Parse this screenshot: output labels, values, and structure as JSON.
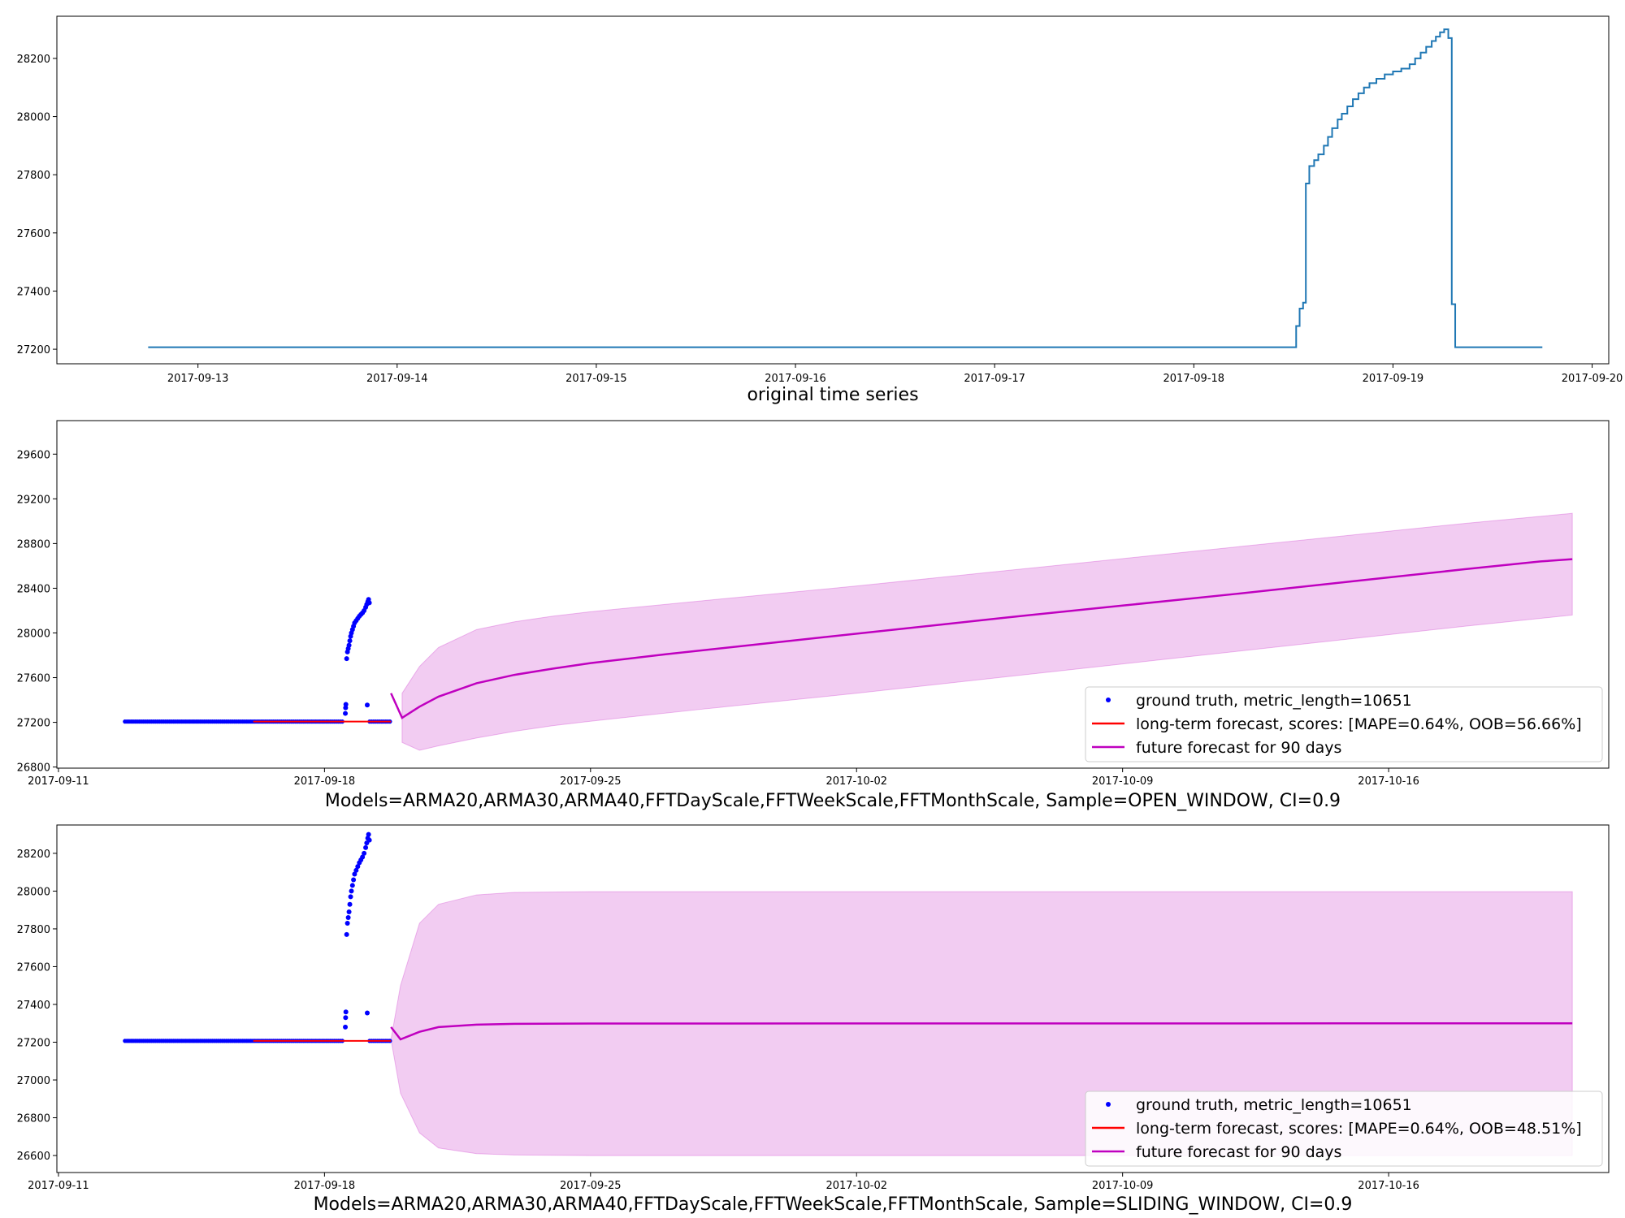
{
  "chart_data": [
    {
      "type": "line",
      "xlabel": "original time series",
      "x_ticks": [
        "2017-09-13",
        "2017-09-14",
        "2017-09-15",
        "2017-09-16",
        "2017-09-17",
        "2017-09-18",
        "2017-09-19",
        "2017-09-20"
      ],
      "y_ticks": [
        "27200",
        "27400",
        "27600",
        "27800",
        "28000",
        "28200"
      ],
      "xlim": [
        "2017-09-12T07:00",
        "2017-09-20T02:00"
      ],
      "ylim": [
        27150,
        28345
      ],
      "series": [
        {
          "color": "#1f77b4",
          "step": true,
          "points": [
            [
              "2017-09-12T18:00",
              27207
            ],
            [
              "2017-09-18T12:00",
              27207
            ],
            [
              "2017-09-18T12:20",
              27280
            ],
            [
              "2017-09-18T12:45",
              27340
            ],
            [
              "2017-09-18T13:10",
              27360
            ],
            [
              "2017-09-18T13:30",
              27770
            ],
            [
              "2017-09-18T13:55",
              27830
            ],
            [
              "2017-09-18T14:30",
              27850
            ],
            [
              "2017-09-18T15:00",
              27870
            ],
            [
              "2017-09-18T15:40",
              27900
            ],
            [
              "2017-09-18T16:10",
              27930
            ],
            [
              "2017-09-18T16:40",
              27960
            ],
            [
              "2017-09-18T17:20",
              27990
            ],
            [
              "2017-09-18T17:50",
              28010
            ],
            [
              "2017-09-18T18:30",
              28035
            ],
            [
              "2017-09-18T19:10",
              28060
            ],
            [
              "2017-09-18T19:50",
              28080
            ],
            [
              "2017-09-18T20:30",
              28100
            ],
            [
              "2017-09-18T21:10",
              28115
            ],
            [
              "2017-09-18T22:00",
              28130
            ],
            [
              "2017-09-18T23:00",
              28145
            ],
            [
              "2017-09-19T00:00",
              28155
            ],
            [
              "2017-09-19T01:00",
              28165
            ],
            [
              "2017-09-19T02:00",
              28180
            ],
            [
              "2017-09-19T02:40",
              28200
            ],
            [
              "2017-09-19T03:20",
              28220
            ],
            [
              "2017-09-19T04:00",
              28240
            ],
            [
              "2017-09-19T04:40",
              28260
            ],
            [
              "2017-09-19T05:10",
              28275
            ],
            [
              "2017-09-19T05:40",
              28290
            ],
            [
              "2017-09-19T06:10",
              28300
            ],
            [
              "2017-09-19T06:40",
              28270
            ],
            [
              "2017-09-19T07:05",
              27355
            ],
            [
              "2017-09-19T07:30",
              27207
            ],
            [
              "2017-09-19T18:00",
              27207
            ]
          ]
        }
      ]
    },
    {
      "type": "line",
      "xlabel": "Models=ARMA20,ARMA30,ARMA40,FFTDayScale,FFTWeekScale,FFTMonthScale, Sample=OPEN_WINDOW, CI=0.9",
      "x_ticks": [
        "2017-09-11",
        "2017-09-18",
        "2017-09-25",
        "2017-10-02",
        "2017-10-09",
        "2017-10-16"
      ],
      "y_ticks": [
        "26800",
        "27200",
        "27600",
        "28000",
        "28400",
        "28800",
        "29200",
        "29600"
      ],
      "xlim": [
        "2017-09-10T23:00",
        "2017-10-21T19:00"
      ],
      "ylim": [
        26790,
        29900
      ],
      "legend": [
        {
          "label": "ground truth, metric_length=10651",
          "color": "#0000ff",
          "marker": "dot"
        },
        {
          "label": "long-term forecast, scores: [MAPE=0.64%, OOB=56.66%]",
          "color": "#ff0000",
          "marker": "line"
        },
        {
          "label": "future forecast for 90 days",
          "color": "#bf00bf",
          "marker": "line"
        }
      ],
      "legend_loc": "lower right",
      "ground_truth": {
        "color": "#0000ff",
        "flat": {
          "start": "2017-09-12T18:00",
          "end": "2017-09-18T12:00",
          "value": 27207
        },
        "points": [
          [
            "2017-09-18T13:10",
            27280
          ],
          [
            "2017-09-18T13:20",
            27330
          ],
          [
            "2017-09-18T13:30",
            27360
          ],
          [
            "2017-09-18T14:00",
            27770
          ],
          [
            "2017-09-18T14:30",
            27830
          ],
          [
            "2017-09-18T15:00",
            27860
          ],
          [
            "2017-09-18T15:30",
            27890
          ],
          [
            "2017-09-18T16:00",
            27930
          ],
          [
            "2017-09-18T16:30",
            27970
          ],
          [
            "2017-09-18T17:00",
            28000
          ],
          [
            "2017-09-18T17:40",
            28030
          ],
          [
            "2017-09-18T18:20",
            28060
          ],
          [
            "2017-09-18T19:00",
            28090
          ],
          [
            "2017-09-18T20:00",
            28110
          ],
          [
            "2017-09-18T21:00",
            28130
          ],
          [
            "2017-09-18T22:00",
            28150
          ],
          [
            "2017-09-18T23:00",
            28165
          ],
          [
            "2017-09-19T00:00",
            28180
          ],
          [
            "2017-09-19T01:00",
            28200
          ],
          [
            "2017-09-19T02:00",
            28230
          ],
          [
            "2017-09-19T02:40",
            28255
          ],
          [
            "2017-09-19T03:20",
            28280
          ],
          [
            "2017-09-19T03:50",
            28300
          ],
          [
            "2017-09-19T04:20",
            28270
          ],
          [
            "2017-09-19T03:00",
            27355
          ]
        ],
        "tail": {
          "start": "2017-09-19T04:30",
          "end": "2017-09-19T18:00",
          "value": 27207
        }
      },
      "long_term_forecast": {
        "color": "#ff0000",
        "points": [
          [
            "2017-09-16T03:00",
            27207
          ],
          [
            "2017-09-19T18:00",
            27207
          ]
        ]
      },
      "future_forecast": {
        "color": "#bf00bf",
        "start_tick": [
          "2017-09-19T18:00",
          27460
        ],
        "points": [
          [
            "2017-09-20T01:00",
            27240
          ],
          [
            "2017-09-20T12:00",
            27340
          ],
          [
            "2017-09-21T00:00",
            27430
          ],
          [
            "2017-09-22T00:00",
            27550
          ],
          [
            "2017-09-23T00:00",
            27625
          ],
          [
            "2017-09-24T00:00",
            27680
          ],
          [
            "2017-09-25T00:00",
            27730
          ],
          [
            "2017-09-27T00:00",
            27810
          ],
          [
            "2017-09-30T00:00",
            27920
          ],
          [
            "2017-10-03T00:00",
            28030
          ],
          [
            "2017-10-06T00:00",
            28140
          ],
          [
            "2017-10-09T00:00",
            28245
          ],
          [
            "2017-10-12T00:00",
            28350
          ],
          [
            "2017-10-15T00:00",
            28460
          ],
          [
            "2017-10-18T00:00",
            28570
          ],
          [
            "2017-10-20T00:00",
            28640
          ],
          [
            "2017-10-20T20:00",
            28660
          ]
        ],
        "upper": [
          [
            "2017-09-20T01:00",
            27460
          ],
          [
            "2017-09-20T12:00",
            27700
          ],
          [
            "2017-09-21T00:00",
            27870
          ],
          [
            "2017-09-22T00:00",
            28030
          ],
          [
            "2017-09-23T00:00",
            28100
          ],
          [
            "2017-09-24T00:00",
            28150
          ],
          [
            "2017-09-25T00:00",
            28190
          ],
          [
            "2017-09-28T00:00",
            28290
          ],
          [
            "2017-10-02T00:00",
            28420
          ],
          [
            "2017-10-06T00:00",
            28560
          ],
          [
            "2017-10-10T00:00",
            28700
          ],
          [
            "2017-10-14T00:00",
            28840
          ],
          [
            "2017-10-18T00:00",
            28980
          ],
          [
            "2017-10-20T20:00",
            29070
          ]
        ],
        "lower": [
          [
            "2017-09-20T01:00",
            27020
          ],
          [
            "2017-09-20T12:00",
            26950
          ],
          [
            "2017-09-21T00:00",
            26990
          ],
          [
            "2017-09-22T00:00",
            27060
          ],
          [
            "2017-09-23T00:00",
            27120
          ],
          [
            "2017-09-24T00:00",
            27170
          ],
          [
            "2017-09-25T00:00",
            27210
          ],
          [
            "2017-09-28T00:00",
            27320
          ],
          [
            "2017-10-02T00:00",
            27460
          ],
          [
            "2017-10-06T00:00",
            27610
          ],
          [
            "2017-10-10T00:00",
            27760
          ],
          [
            "2017-10-14T00:00",
            27910
          ],
          [
            "2017-10-18T00:00",
            28060
          ],
          [
            "2017-10-20T20:00",
            28160
          ]
        ]
      }
    },
    {
      "type": "line",
      "xlabel": "Models=ARMA20,ARMA30,ARMA40,FFTDayScale,FFTWeekScale,FFTMonthScale, Sample=SLIDING_WINDOW, CI=0.9",
      "x_ticks": [
        "2017-09-11",
        "2017-09-18",
        "2017-09-25",
        "2017-10-02",
        "2017-10-09",
        "2017-10-16"
      ],
      "y_ticks": [
        "26600",
        "26800",
        "27000",
        "27200",
        "27400",
        "27600",
        "27800",
        "28000",
        "28200"
      ],
      "xlim": [
        "2017-09-10T23:00",
        "2017-10-21T19:00"
      ],
      "ylim": [
        26510,
        28350
      ],
      "legend": [
        {
          "label": "ground truth, metric_length=10651",
          "color": "#0000ff",
          "marker": "dot"
        },
        {
          "label": "long-term forecast, scores: [MAPE=0.64%, OOB=48.51%]",
          "color": "#ff0000",
          "marker": "line"
        },
        {
          "label": "future forecast for 90 days",
          "color": "#bf00bf",
          "marker": "line"
        }
      ],
      "legend_loc": "lower right",
      "ground_truth": {
        "color": "#0000ff",
        "flat": {
          "start": "2017-09-12T18:00",
          "end": "2017-09-18T12:00",
          "value": 27207
        },
        "points": [
          [
            "2017-09-18T13:10",
            27280
          ],
          [
            "2017-09-18T13:20",
            27330
          ],
          [
            "2017-09-18T13:30",
            27360
          ],
          [
            "2017-09-18T14:00",
            27770
          ],
          [
            "2017-09-18T14:30",
            27830
          ],
          [
            "2017-09-18T15:00",
            27860
          ],
          [
            "2017-09-18T15:30",
            27890
          ],
          [
            "2017-09-18T16:00",
            27930
          ],
          [
            "2017-09-18T16:30",
            27970
          ],
          [
            "2017-09-18T17:00",
            28000
          ],
          [
            "2017-09-18T17:40",
            28030
          ],
          [
            "2017-09-18T18:20",
            28060
          ],
          [
            "2017-09-18T19:00",
            28090
          ],
          [
            "2017-09-18T20:00",
            28110
          ],
          [
            "2017-09-18T21:00",
            28130
          ],
          [
            "2017-09-18T22:00",
            28150
          ],
          [
            "2017-09-18T23:00",
            28165
          ],
          [
            "2017-09-19T00:00",
            28180
          ],
          [
            "2017-09-19T01:00",
            28200
          ],
          [
            "2017-09-19T02:00",
            28230
          ],
          [
            "2017-09-19T02:40",
            28255
          ],
          [
            "2017-09-19T03:20",
            28280
          ],
          [
            "2017-09-19T03:50",
            28300
          ],
          [
            "2017-09-19T04:20",
            28270
          ],
          [
            "2017-09-19T03:00",
            27355
          ]
        ],
        "tail": {
          "start": "2017-09-19T04:30",
          "end": "2017-09-19T18:00",
          "value": 27207
        }
      },
      "long_term_forecast": {
        "color": "#ff0000",
        "points": [
          [
            "2017-09-16T03:00",
            27207
          ],
          [
            "2017-09-19T18:00",
            27207
          ]
        ]
      },
      "future_forecast": {
        "color": "#bf00bf",
        "start_tick": [
          "2017-09-19T18:00",
          27280
        ],
        "points": [
          [
            "2017-09-20T00:00",
            27215
          ],
          [
            "2017-09-20T12:00",
            27255
          ],
          [
            "2017-09-21T00:00",
            27280
          ],
          [
            "2017-09-22T00:00",
            27293
          ],
          [
            "2017-09-23T00:00",
            27297
          ],
          [
            "2017-09-25T00:00",
            27299
          ],
          [
            "2017-10-20T20:00",
            27300
          ]
        ],
        "upper": [
          [
            "2017-09-19T18:00",
            27215
          ],
          [
            "2017-09-20T00:00",
            27500
          ],
          [
            "2017-09-20T12:00",
            27830
          ],
          [
            "2017-09-21T00:00",
            27930
          ],
          [
            "2017-09-22T00:00",
            27980
          ],
          [
            "2017-09-23T00:00",
            27993
          ],
          [
            "2017-09-25T00:00",
            27997
          ],
          [
            "2017-10-20T20:00",
            27997
          ]
        ],
        "lower": [
          [
            "2017-09-19T18:00",
            27215
          ],
          [
            "2017-09-20T00:00",
            26930
          ],
          [
            "2017-09-20T12:00",
            26720
          ],
          [
            "2017-09-21T00:00",
            26640
          ],
          [
            "2017-09-22T00:00",
            26610
          ],
          [
            "2017-09-23T00:00",
            26603
          ],
          [
            "2017-09-25T00:00",
            26600
          ],
          [
            "2017-10-20T20:00",
            26600
          ]
        ]
      }
    }
  ]
}
